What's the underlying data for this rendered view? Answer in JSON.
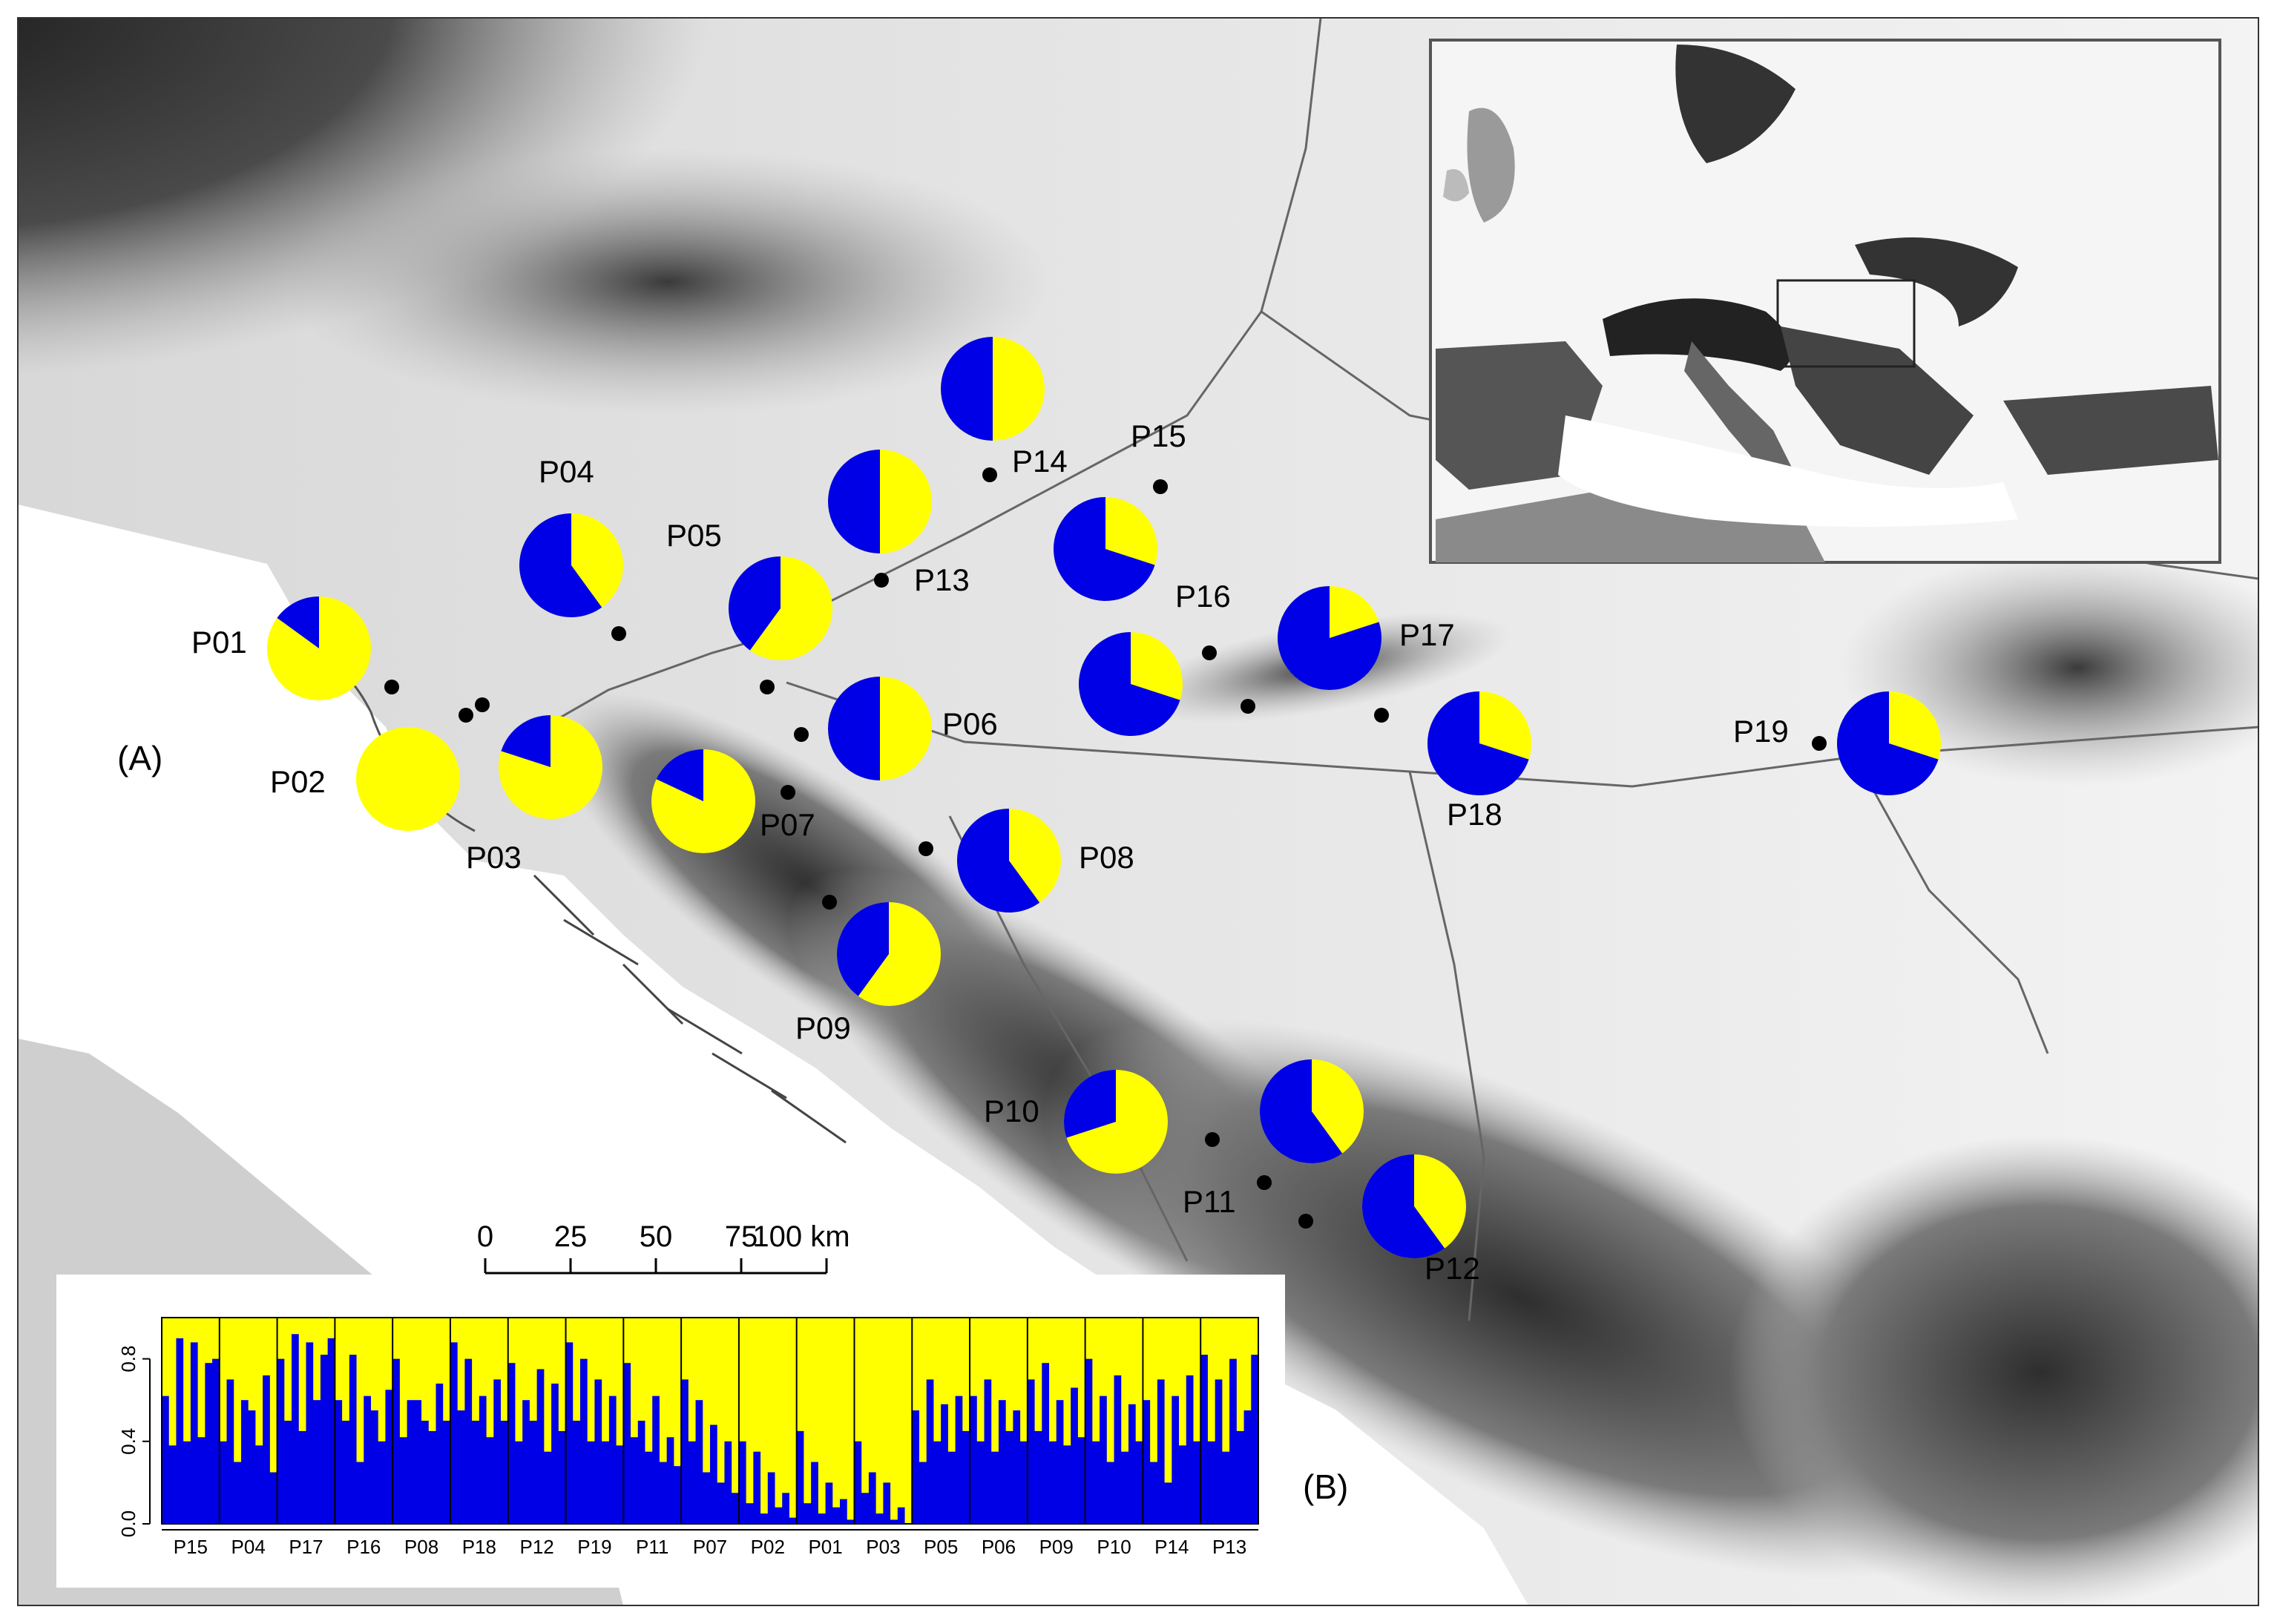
{
  "colors": {
    "cluster1": "#0000E6",
    "cluster2": "#FFFF00",
    "site_marker": "#000000",
    "sea": "#ffffff",
    "lowland": "#f1f1f1",
    "mountain": "#2a2a2a"
  },
  "panel_labels": {
    "map": "(A)",
    "barplot": "(B)"
  },
  "scale_bar": {
    "ticks": [
      "0",
      "25",
      "50",
      "75",
      "100 km"
    ]
  },
  "inset": {
    "description_icon": "europe-locator-map-icon"
  },
  "populations": [
    {
      "id": "P01",
      "cluster1": 0.15
    },
    {
      "id": "P02",
      "cluster1": 0.0
    },
    {
      "id": "P03",
      "cluster1": 0.2
    },
    {
      "id": "P04",
      "cluster1": 0.6
    },
    {
      "id": "P05",
      "cluster1": 0.4
    },
    {
      "id": "P06",
      "cluster1": 0.5
    },
    {
      "id": "P07",
      "cluster1": 0.18
    },
    {
      "id": "P08",
      "cluster1": 0.6
    },
    {
      "id": "P09",
      "cluster1": 0.4
    },
    {
      "id": "P10",
      "cluster1": 0.3
    },
    {
      "id": "P11",
      "cluster1": 0.6
    },
    {
      "id": "P12",
      "cluster1": 0.6
    },
    {
      "id": "P13",
      "cluster1": 0.5
    },
    {
      "id": "P14",
      "cluster1": 0.5
    },
    {
      "id": "P15",
      "cluster1": 0.7
    },
    {
      "id": "P16",
      "cluster1": 0.7
    },
    {
      "id": "P17",
      "cluster1": 0.8
    },
    {
      "id": "P18",
      "cluster1": 0.7
    },
    {
      "id": "P19",
      "cluster1": 0.7
    }
  ],
  "chart_data": {
    "type": "bar",
    "stacked": true,
    "ylim": [
      0,
      1
    ],
    "yticks": [
      "0.0",
      "0.4",
      "0.8"
    ],
    "categories": [
      "P15",
      "P04",
      "P17",
      "P16",
      "P08",
      "P18",
      "P12",
      "P19",
      "P11",
      "P07",
      "P02",
      "P01",
      "P03",
      "P05",
      "P06",
      "P09",
      "P10",
      "P14",
      "P13"
    ],
    "series": [
      {
        "values": [
          [
            0.62,
            0.38,
            0.9,
            0.4,
            0.88,
            0.42,
            0.78,
            0.8
          ],
          [
            0.4,
            0.7,
            0.3,
            0.6,
            0.55,
            0.38,
            0.72,
            0.25
          ],
          [
            0.8,
            0.5,
            0.92,
            0.45,
            0.88,
            0.6,
            0.82,
            0.9
          ],
          [
            0.6,
            0.5,
            0.82,
            0.3,
            0.62,
            0.55,
            0.4,
            0.65
          ],
          [
            0.8,
            0.42,
            0.6,
            0.6,
            0.5,
            0.45,
            0.68,
            0.5
          ],
          [
            0.88,
            0.55,
            0.8,
            0.5,
            0.62,
            0.42,
            0.7,
            0.5
          ],
          [
            0.78,
            0.4,
            0.6,
            0.5,
            0.75,
            0.35,
            0.68,
            0.45
          ],
          [
            0.88,
            0.5,
            0.8,
            0.4,
            0.7,
            0.4,
            0.62,
            0.38
          ],
          [
            0.78,
            0.42,
            0.5,
            0.35,
            0.62,
            0.3,
            0.42,
            0.28
          ],
          [
            0.7,
            0.4,
            0.6,
            0.25,
            0.48,
            0.2,
            0.4,
            0.15
          ],
          [
            0.4,
            0.1,
            0.35,
            0.05,
            0.25,
            0.08,
            0.15,
            0.03
          ],
          [
            0.45,
            0.1,
            0.3,
            0.05,
            0.2,
            0.08,
            0.12,
            0.02
          ],
          [
            0.4,
            0.15,
            0.25,
            0.05,
            0.2,
            0.02,
            0.08,
            0.0
          ],
          [
            0.55,
            0.3,
            0.7,
            0.4,
            0.58,
            0.35,
            0.62,
            0.45
          ],
          [
            0.62,
            0.4,
            0.7,
            0.35,
            0.6,
            0.45,
            0.55,
            0.4
          ],
          [
            0.7,
            0.45,
            0.78,
            0.4,
            0.6,
            0.38,
            0.66,
            0.42
          ],
          [
            0.8,
            0.4,
            0.62,
            0.3,
            0.72,
            0.35,
            0.58,
            0.4
          ],
          [
            0.6,
            0.3,
            0.7,
            0.2,
            0.62,
            0.38,
            0.72,
            0.4
          ],
          [
            0.82,
            0.4,
            0.7,
            0.35,
            0.8,
            0.45,
            0.55,
            0.82
          ]
        ]
      }
    ]
  }
}
